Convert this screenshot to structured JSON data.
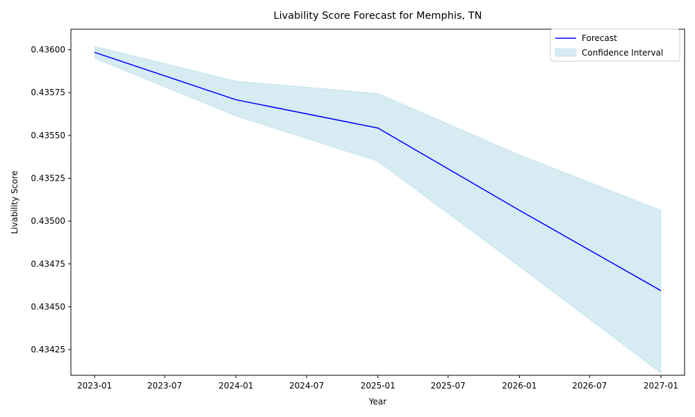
{
  "chart_data": {
    "type": "line",
    "title": "Livability Score Forecast for Memphis, TN",
    "xlabel": "Year",
    "ylabel": "Livability Score",
    "x": [
      "2023-01-01",
      "2024-01-01",
      "2025-01-01",
      "2026-01-01",
      "2027-01-01"
    ],
    "series": [
      {
        "name": "Forecast",
        "color": "#0000ff",
        "values": [
          0.435985,
          0.435708,
          0.435543,
          0.435063,
          0.434594
        ]
      }
    ],
    "band": {
      "name": "Confidence Interval",
      "color": "#add8e6",
      "lower": [
        0.43595,
        0.435613,
        0.435349,
        0.434735,
        0.434113
      ],
      "upper": [
        0.43602,
        0.435817,
        0.435745,
        0.435387,
        0.435063
      ]
    },
    "x_ticks": [
      "2023-01",
      "2023-07",
      "2024-01",
      "2024-07",
      "2025-01",
      "2025-07",
      "2026-01",
      "2026-07",
      "2027-01"
    ],
    "y_ticks": [
      "0.43425",
      "0.43450",
      "0.43475",
      "0.43500",
      "0.43525",
      "0.43550",
      "0.43575",
      "0.43600"
    ],
    "ylim": [
      0.4341,
      0.43612
    ],
    "xlim": [
      "2022-11-01",
      "2027-03-03"
    ],
    "legend_position": "top-right",
    "grid": false
  }
}
